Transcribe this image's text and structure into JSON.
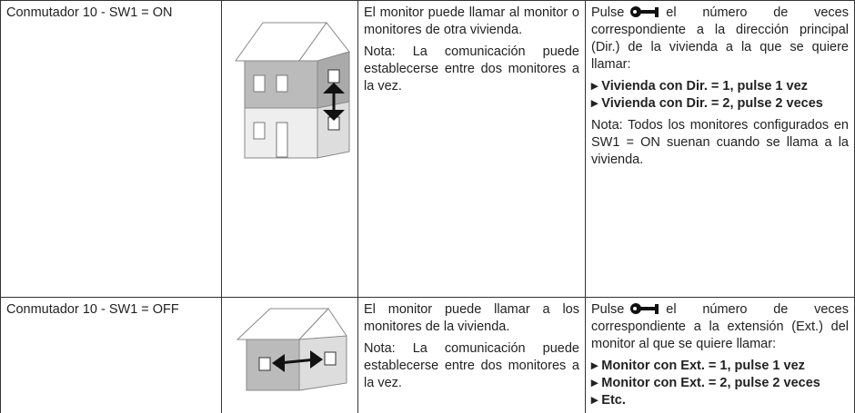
{
  "table": {
    "rows": [
      {
        "switch": "Conmutador 10 - SW1 = ON",
        "description": [
          "El monitor puede llamar al monitor o monitores de otra vivienda.",
          "Nota: La comunicación puede establecerse entre dos monitores a la vez."
        ],
        "instructions": {
          "intro_before": "Pulse",
          "intro_after": "el número de veces correspondiente a la dirección principal (Dir.) de la vivienda a la que se quiere llamar:",
          "items": [
            "▸ Vivienda con Dir. = 1, pulse 1 vez",
            "▸ Vivienda con Dir. = 2, pulse 2 veces"
          ],
          "note": "Nota: Todos los monitores configurados en SW1 = ON suenan cuando se llama a la vivienda."
        }
      },
      {
        "switch": "Conmutador 10 - SW1 = OFF",
        "description": [
          "El monitor puede llamar a los monitores de la vivienda.",
          "Nota: La comunicación puede establecerse entre dos monitores a la vez."
        ],
        "instructions": {
          "intro_before": "Pulse",
          "intro_after": "el número de veces correspondiente a la extensión (Ext.) del monitor al que se quiere llamar:",
          "items": [
            "▸ Monitor con Ext. = 1, pulse 1 vez",
            "▸ Monitor con Ext. = 2, pulse 2 veces",
            "▸ Etc."
          ],
          "note": null
        }
      }
    ]
  }
}
